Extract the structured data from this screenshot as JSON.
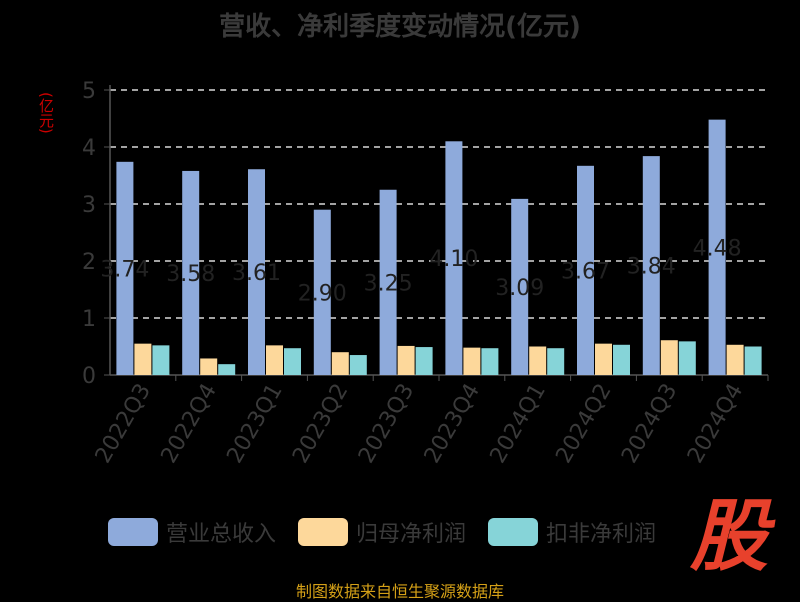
{
  "title": "营收、净利季度变动情况(亿元)",
  "unit_label": "(亿元)",
  "source_text": "制图数据来自恒生聚源数据库",
  "logo_text": "股",
  "chart_data": {
    "type": "bar",
    "categories": [
      "2022Q3",
      "2022Q4",
      "2023Q1",
      "2023Q2",
      "2023Q3",
      "2023Q4",
      "2024Q1",
      "2024Q2",
      "2024Q3",
      "2024Q4"
    ],
    "series": [
      {
        "name": "营业总收入",
        "color": "#8eaadb",
        "values": [
          3.74,
          3.58,
          3.61,
          2.9,
          3.25,
          4.1,
          3.09,
          3.67,
          3.84,
          4.48
        ],
        "labels": [
          "3.74",
          "3.58",
          "3.61",
          "2.90",
          "3.25",
          "4.10",
          "3.09",
          "3.67",
          "3.84",
          "4.48"
        ]
      },
      {
        "name": "归母净利润",
        "color": "#fdd89b",
        "values": [
          0.55,
          0.29,
          0.52,
          0.4,
          0.51,
          0.48,
          0.5,
          0.55,
          0.61,
          0.53
        ]
      },
      {
        "name": "扣非净利润",
        "color": "#86d4d8",
        "values": [
          0.52,
          0.19,
          0.47,
          0.35,
          0.49,
          0.47,
          0.47,
          0.53,
          0.59,
          0.5
        ]
      }
    ],
    "ylim": [
      0,
      5
    ],
    "yticks": [
      0,
      1,
      2,
      3,
      4,
      5
    ],
    "grid": true,
    "legend_position": "bottom"
  }
}
